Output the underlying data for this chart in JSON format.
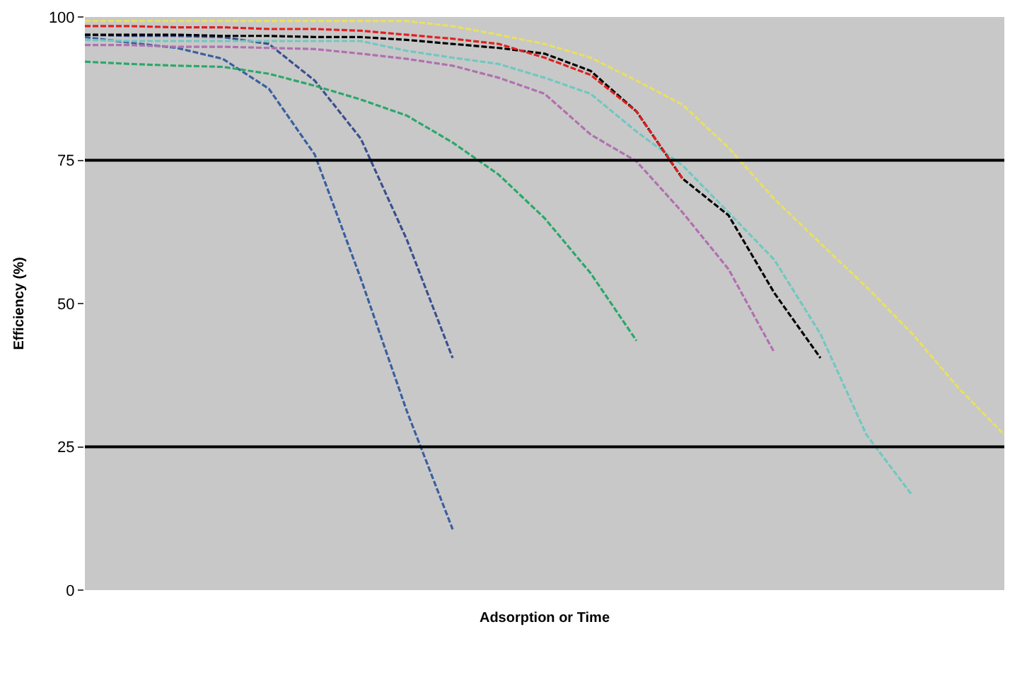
{
  "chart_data": {
    "type": "line",
    "xlabel": "Adsorption or Time",
    "ylabel": "Efficiency (%)",
    "categories": [
      null,
      null,
      null,
      null,
      null,
      null,
      null,
      null,
      null,
      null,
      null,
      null,
      null,
      null,
      null,
      null,
      null,
      null,
      null,
      null,
      null
    ],
    "ylim": [
      0,
      100
    ],
    "yticks": [
      0,
      25,
      50,
      75,
      100
    ],
    "grid": false,
    "line_style": "dashed",
    "marker": "none",
    "ref_lines": [
      {
        "axis": "y",
        "value": 75,
        "color": "#000000",
        "line_style": "solid"
      },
      {
        "axis": "y",
        "value": 25,
        "color": "#000000",
        "line_style": "solid"
      }
    ],
    "series": [
      {
        "color": "#3a5fa0",
        "values": [
          96.5,
          95.5,
          94.6,
          92.7,
          87.5,
          76,
          54.4,
          31.3,
          10.6,
          null,
          null,
          null,
          null,
          null,
          null,
          null,
          null,
          null,
          null,
          null,
          null
        ]
      },
      {
        "color": "#3a4f8f",
        "values": [
          96.9,
          96.7,
          96.7,
          96.5,
          95.3,
          88.9,
          78.8,
          61.2,
          40.5,
          null,
          null,
          null,
          null,
          null,
          null,
          null,
          null,
          null,
          null,
          null,
          null
        ]
      },
      {
        "color": "#2aa86a",
        "values": [
          92.2,
          91.8,
          91.5,
          91.3,
          90.1,
          88,
          85.6,
          82.8,
          78.1,
          72.5,
          64.9,
          55.3,
          43.5,
          null,
          null,
          null,
          null,
          null,
          null,
          null,
          null
        ]
      },
      {
        "color": "#b070b0",
        "values": [
          95.1,
          95.1,
          94.8,
          94.8,
          94.6,
          94.4,
          93.6,
          92.7,
          91.5,
          89.4,
          86.6,
          79.5,
          74.8,
          65.9,
          56,
          41.4,
          null,
          null,
          null,
          null,
          null
        ]
      },
      {
        "color": "#70c8c0",
        "values": [
          96,
          95.8,
          95.8,
          95.8,
          95.8,
          95.8,
          95.8,
          94.1,
          92.9,
          91.8,
          89.4,
          86.6,
          80,
          74.1,
          65.9,
          57.6,
          44.7,
          27.1,
          16.5,
          null,
          null
        ]
      },
      {
        "color": "#000000",
        "values": [
          96.9,
          96.9,
          96.9,
          96.7,
          96.7,
          96.5,
          96.5,
          96,
          95.3,
          94.6,
          93.6,
          90.6,
          83.5,
          71.8,
          65.4,
          51.8,
          40.5,
          null,
          null,
          null,
          null
        ]
      },
      {
        "color": "#e02020",
        "values": [
          98.4,
          98.4,
          98.2,
          98.2,
          97.9,
          97.9,
          97.6,
          96.9,
          96.2,
          95.3,
          92.9,
          89.9,
          83.5,
          71.8,
          null,
          null,
          null,
          null,
          null,
          null,
          null
        ]
      },
      {
        "color": "#e8e060",
        "values": [
          99.3,
          99.3,
          99.3,
          99.3,
          99.3,
          99.3,
          99.3,
          99.3,
          98.4,
          96.9,
          95.3,
          92.9,
          88.9,
          84.7,
          77.2,
          68.2,
          60.5,
          52.9,
          44.7,
          35.3,
          27.1
        ]
      }
    ]
  }
}
